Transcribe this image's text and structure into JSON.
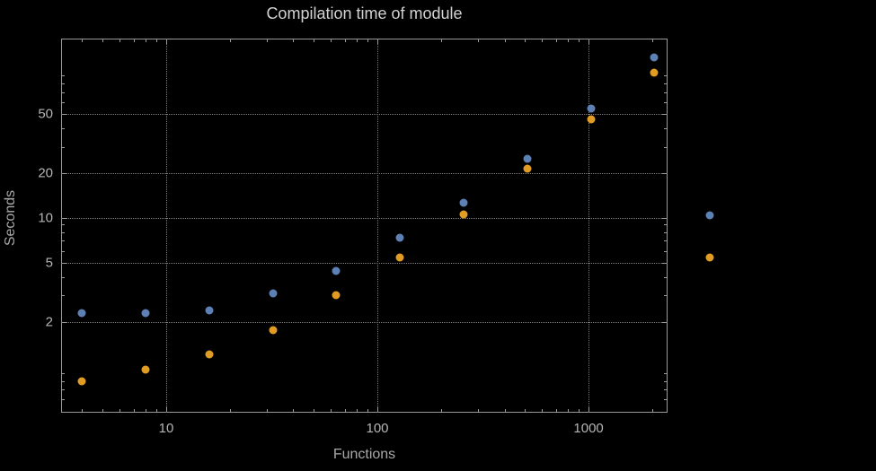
{
  "chart_data": {
    "type": "scatter",
    "title": "Compilation time of module",
    "xlabel": "Functions",
    "ylabel": "Seconds",
    "x_scale": "log",
    "y_scale": "log",
    "grid": true,
    "legend_position": "right-outside",
    "x": [
      4,
      8,
      16,
      32,
      64,
      128,
      256,
      512,
      1024,
      2048
    ],
    "series": [
      {
        "name": "blue",
        "color": "#5e81b5",
        "values": [
          2.3,
          2.3,
          2.4,
          3.1,
          4.4,
          7.3,
          12.7,
          25,
          54,
          120
        ]
      },
      {
        "name": "orange",
        "color": "#e19c24",
        "values": [
          0.8,
          0.95,
          1.2,
          1.75,
          3.0,
          5.4,
          10.5,
          21.5,
          46,
          95
        ]
      }
    ],
    "x_ticks": [
      10,
      100,
      1000
    ],
    "y_ticks": [
      2,
      5,
      10,
      20,
      50
    ],
    "xlim": [
      3.18,
      2366
    ],
    "ylim": [
      0.49,
      160
    ]
  }
}
